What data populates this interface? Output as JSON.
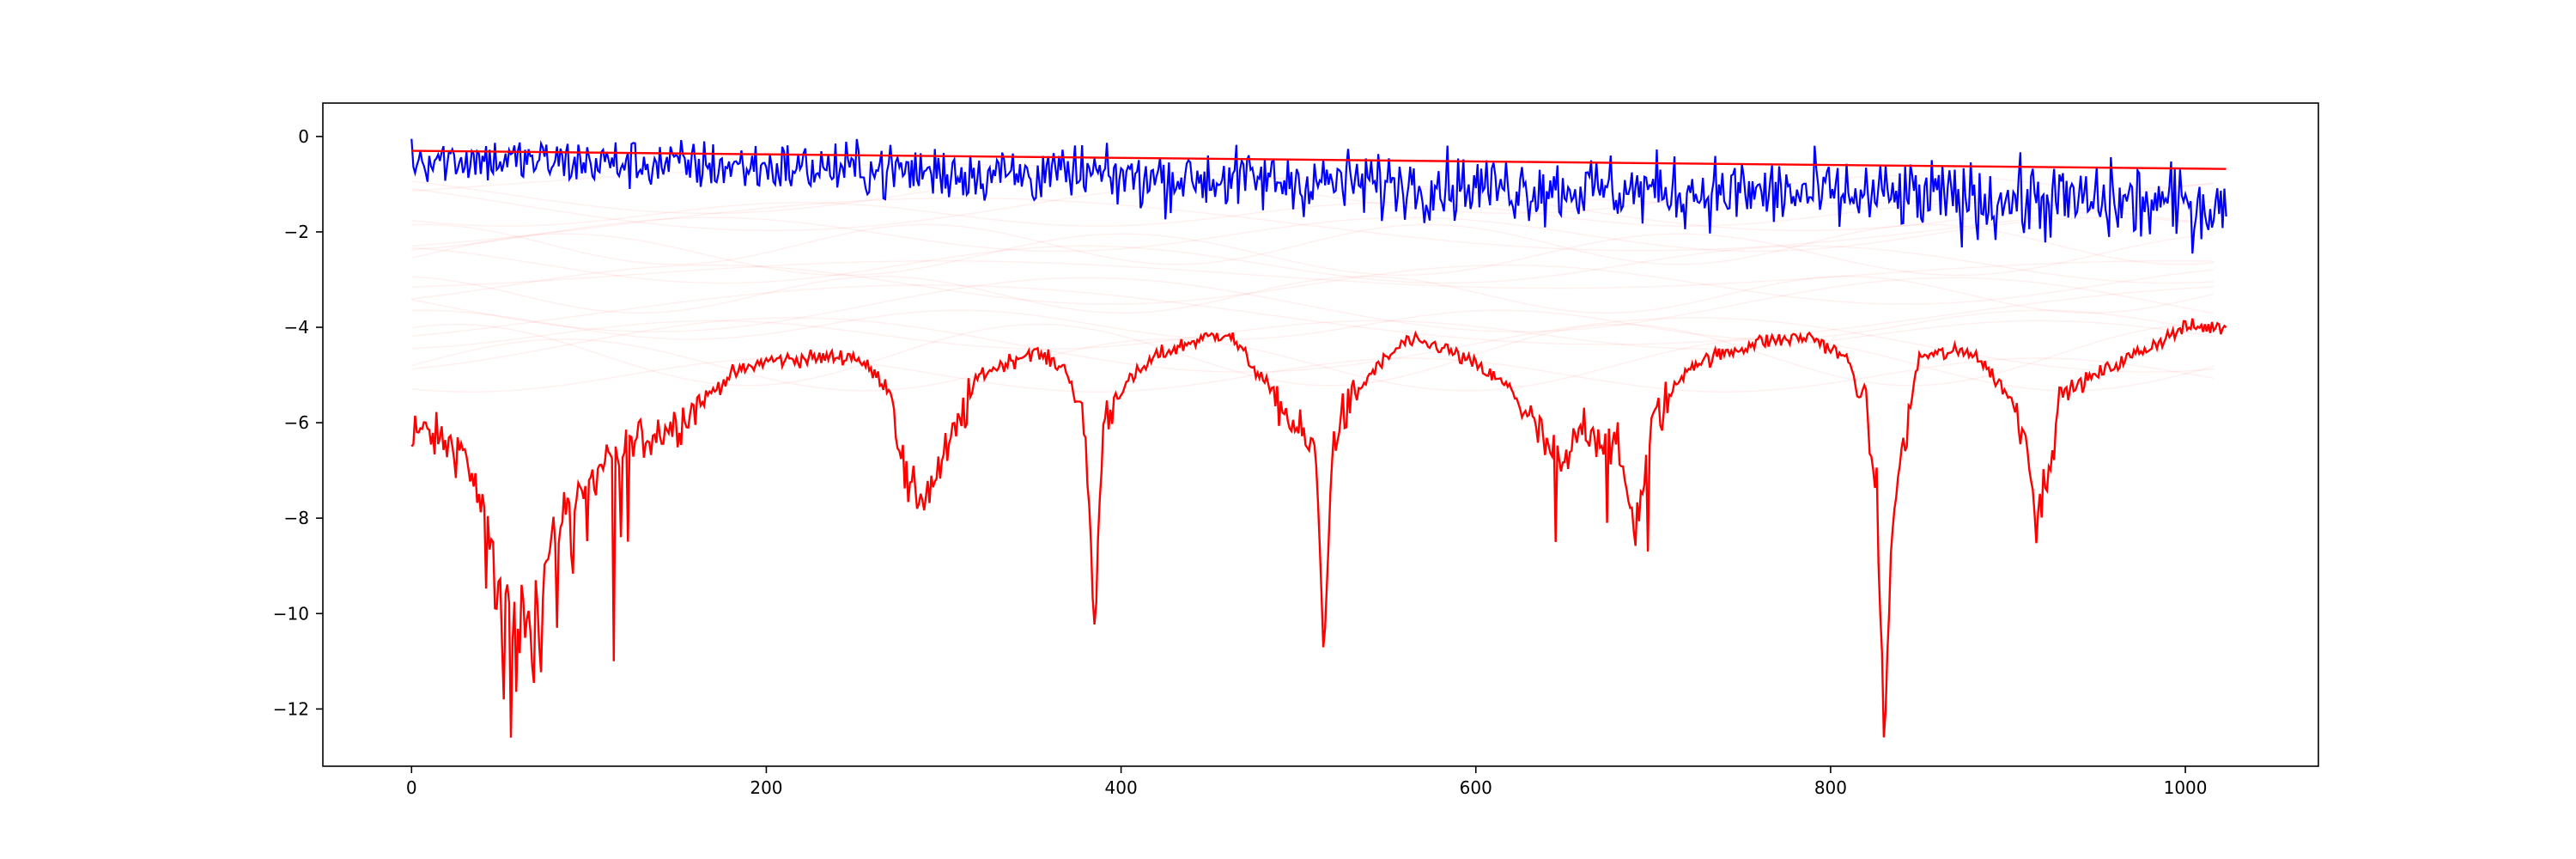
{
  "chart_data": {
    "type": "line",
    "title": "",
    "xlabel": "",
    "ylabel": "",
    "xlim": [
      -50,
      1075
    ],
    "ylim": [
      -13.2,
      0.7
    ],
    "x_ticks": [
      0,
      200,
      400,
      600,
      800,
      1000
    ],
    "y_ticks": [
      0,
      -2,
      -4,
      -6,
      -8,
      -10,
      -12
    ],
    "grid": false,
    "legend": "none",
    "n_points": 1024,
    "series": [
      {
        "color": "#0000ff",
        "style": "noisy line",
        "x": [
          0,
          1023
        ],
        "start": -0.05,
        "trend_start": -0.45,
        "trend_end": -1.45,
        "min": -2.7
      },
      {
        "color": "#ff0000",
        "style": "straight line",
        "x": [
          0,
          1023
        ],
        "values": [
          -0.3,
          -0.68
        ]
      },
      {
        "color": "#ff0000",
        "style": "line",
        "x": [
          0,
          30,
          60,
          90,
          120,
          150,
          180,
          200,
          250,
          270,
          280,
          290,
          300,
          320,
          350,
          370,
          380,
          385,
          390,
          400,
          420,
          440,
          460,
          480,
          500,
          510,
          514,
          520,
          540,
          560,
          580,
          600,
          620,
          640,
          650,
          660,
          680,
          690,
          700,
          720,
          760,
          790,
          810,
          820,
          826,
          830,
          836,
          850,
          880,
          900,
          912,
          916,
          930,
          960,
          1000,
          1023
        ],
        "values": [
          -6.1,
          -6.6,
          -10.5,
          -7.5,
          -6.5,
          -6.0,
          -5.0,
          -4.7,
          -4.6,
          -5.3,
          -7.5,
          -7.5,
          -6.8,
          -5.0,
          -4.5,
          -4.9,
          -6.3,
          -10.3,
          -6.0,
          -5.3,
          -4.6,
          -4.3,
          -4.1,
          -5.1,
          -6.2,
          -6.7,
          -10.7,
          -6.2,
          -5.0,
          -4.3,
          -4.4,
          -4.8,
          -5.3,
          -6.5,
          -7.0,
          -6.0,
          -6.6,
          -8.2,
          -6.0,
          -4.8,
          -4.3,
          -4.2,
          -4.7,
          -5.8,
          -7.5,
          -12.4,
          -7.6,
          -4.6,
          -4.5,
          -5.4,
          -6.5,
          -8.2,
          -5.4,
          -4.8,
          -4.0,
          -4.0
        ],
        "spikes": [
          {
            "x": 48,
            "y": -9.9
          },
          {
            "x": 52,
            "y": -11.8
          },
          {
            "x": 56,
            "y": -12.6
          },
          {
            "x": 62,
            "y": -9.4
          },
          {
            "x": 70,
            "y": -9.3
          },
          {
            "x": 82,
            "y": -10.3
          },
          {
            "x": 114,
            "y": -11.0
          },
          {
            "x": 118,
            "y": -8.4
          },
          {
            "x": 645,
            "y": -8.5
          },
          {
            "x": 674,
            "y": -8.1
          },
          {
            "x": 697,
            "y": -8.7
          }
        ]
      }
    ],
    "faint_background_lines": {
      "color": "#ff0000",
      "opacity": 0.06,
      "count": 20,
      "y_range": [
        -5.0,
        -1.0
      ]
    }
  }
}
